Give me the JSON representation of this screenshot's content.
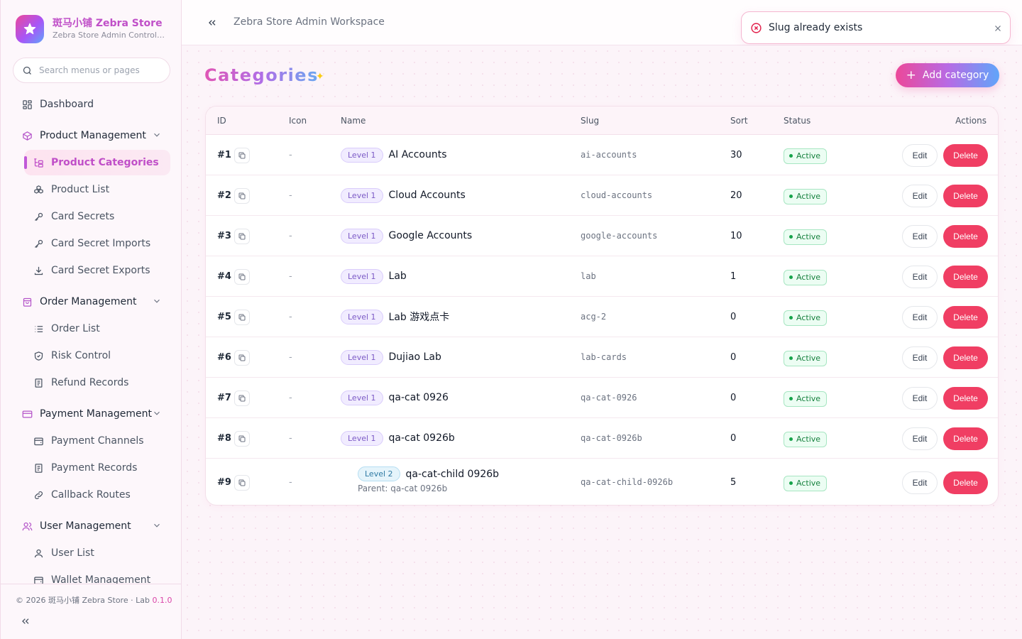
{
  "brand": {
    "title": "斑马小铺 Zebra Store",
    "subtitle": "Zebra Store Admin Control Panel"
  },
  "search": {
    "placeholder": "Search menus or pages"
  },
  "sidebar": {
    "dashboard": "Dashboard",
    "groups": [
      {
        "label": "Product Management",
        "items": [
          "Product Categories",
          "Product List",
          "Card Secrets",
          "Card Secret Imports",
          "Card Secret Exports"
        ]
      },
      {
        "label": "Order Management",
        "items": [
          "Order List",
          "Risk Control",
          "Refund Records"
        ]
      },
      {
        "label": "Payment Management",
        "items": [
          "Payment Channels",
          "Payment Records",
          "Callback Routes"
        ]
      },
      {
        "label": "User Management",
        "items": [
          "User List",
          "Wallet Management"
        ]
      }
    ],
    "active_item": "Product Categories"
  },
  "footer": {
    "copyright": "© 2026 斑马小铺 Zebra Store · Lab",
    "version": "0.1.0"
  },
  "header": {
    "workspace": "Zebra Store Admin Workspace"
  },
  "toast": {
    "message": "Slug already exists",
    "type": "error"
  },
  "page": {
    "title": "Categories",
    "add_button": "Add category"
  },
  "table": {
    "columns": {
      "id": "ID",
      "icon": "Icon",
      "name": "Name",
      "slug": "Slug",
      "sort": "Sort",
      "status": "Status",
      "actions": "Actions"
    },
    "edit_label": "Edit",
    "delete_label": "Delete",
    "rows": [
      {
        "id": "#1",
        "icon": "-",
        "level": "Level 1",
        "name": "AI Accounts",
        "slug": "ai-accounts",
        "sort": "30",
        "status": "Active"
      },
      {
        "id": "#2",
        "icon": "-",
        "level": "Level 1",
        "name": "Cloud Accounts",
        "slug": "cloud-accounts",
        "sort": "20",
        "status": "Active"
      },
      {
        "id": "#3",
        "icon": "-",
        "level": "Level 1",
        "name": "Google Accounts",
        "slug": "google-accounts",
        "sort": "10",
        "status": "Active"
      },
      {
        "id": "#4",
        "icon": "-",
        "level": "Level 1",
        "name": "Lab",
        "slug": "lab",
        "sort": "1",
        "status": "Active"
      },
      {
        "id": "#5",
        "icon": "-",
        "level": "Level 1",
        "name": "Lab 游戏点卡",
        "slug": "acg-2",
        "sort": "0",
        "status": "Active"
      },
      {
        "id": "#6",
        "icon": "-",
        "level": "Level 1",
        "name": "Dujiao Lab",
        "slug": "lab-cards",
        "sort": "0",
        "status": "Active"
      },
      {
        "id": "#7",
        "icon": "-",
        "level": "Level 1",
        "name": "qa-cat 0926",
        "slug": "qa-cat-0926",
        "sort": "0",
        "status": "Active"
      },
      {
        "id": "#8",
        "icon": "-",
        "level": "Level 1",
        "name": "qa-cat 0926b",
        "slug": "qa-cat-0926b",
        "sort": "0",
        "status": "Active"
      },
      {
        "id": "#9",
        "icon": "-",
        "level": "Level 2",
        "name": "qa-cat-child 0926b",
        "parent": "Parent: qa-cat 0926b",
        "slug": "qa-cat-child-0926b",
        "sort": "5",
        "status": "Active"
      }
    ]
  },
  "colors": {
    "accent": "#c04fc8",
    "danger": "#f03e63",
    "success": "#16a34a"
  }
}
